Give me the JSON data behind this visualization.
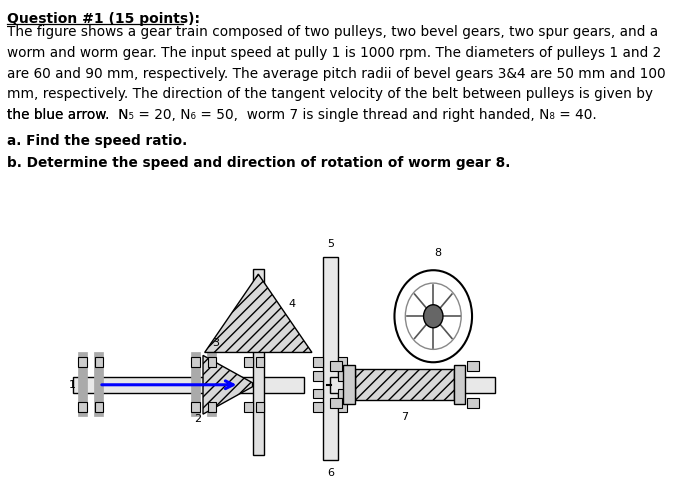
{
  "title": "Question #1 (15 points):",
  "line1": "The figure shows a gear train composed of two pulleys, two bevel gears, two spur gears, and a",
  "line2": "worm and worm gear. The input speed at pully 1 is 1000 rpm. The diameters of pulleys 1 and 2",
  "line3": "are 60 and 90 mm, respectively. The average pitch radii of bevel gears 3&4 are 50 mm and 100",
  "line4": "mm, respectively. The direction of the tangent velocity of the belt between pulleys is given by",
  "line5a": "the blue arrow.  N",
  "line5b": "5",
  "line5c": " = 20, N",
  "line5d": "6",
  "line5e": " = 50,  worm 7 is single thread and right handed, N",
  "line5f": "8",
  "line5g": " = 40.",
  "quest_a": "a. Find the speed ratio.",
  "quest_b": "b. Determine the speed and direction of rotation of worm gear 8.",
  "bg_color": "#ffffff",
  "text_color": "#000000",
  "fs_title": 10,
  "fs_body": 9.8
}
